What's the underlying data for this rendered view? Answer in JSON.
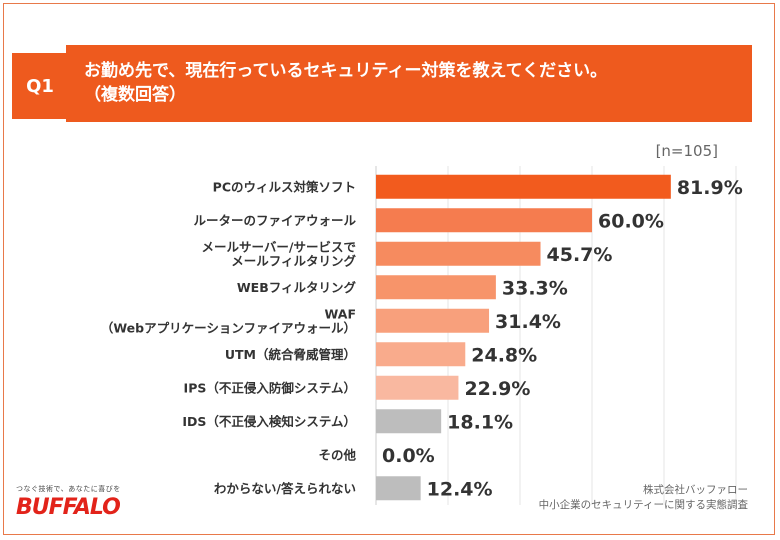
{
  "header": {
    "q_label": "Q1",
    "question_lines": [
      "お勤め先で、現在行っているセキュリティー対策を教えてください。",
      "（複数回答）"
    ]
  },
  "sample_size": "[n=105]",
  "chart_data": {
    "type": "bar",
    "orientation": "horizontal",
    "title": "お勤め先で、現在行っているセキュリティー対策を教えてください。（複数回答）",
    "categories": [
      [
        "PCのウィルス対策ソフト"
      ],
      [
        "ルーターのファイアウォール"
      ],
      [
        "メールサーバー/サービスで",
        "メールフィルタリング"
      ],
      [
        "WEBフィルタリング"
      ],
      [
        "WAF",
        "（Webアプリケーションファイアウォール）"
      ],
      [
        "UTM（統合脅威管理）"
      ],
      [
        "IPS（不正侵入防御システム）"
      ],
      [
        "IDS（不正侵入検知システム）"
      ],
      [
        "その他"
      ],
      [
        "わからない/答えられない"
      ]
    ],
    "values": [
      81.9,
      60.0,
      45.7,
      33.3,
      31.4,
      24.8,
      22.9,
      18.1,
      0.0,
      12.4
    ],
    "value_labels": [
      "81.9%",
      "60.0%",
      "45.7%",
      "33.3%",
      "31.4%",
      "24.8%",
      "22.9%",
      "18.1%",
      "0.0%",
      "12.4%"
    ],
    "colors": [
      "#f25b1e",
      "#f57c4f",
      "#f68b5f",
      "#f7946a",
      "#f8a07c",
      "#f9ab8c",
      "#f9b8a0",
      "#bdbdbd",
      "#bdbdbd",
      "#bdbdbd"
    ],
    "xlim": [
      0,
      100
    ],
    "unit": "%",
    "grid": true
  },
  "footer": {
    "tagline": "つなぐ技術で、あなたに喜びを",
    "logo_text": "BUFFALO",
    "source_lines": [
      "株式会社バッファロー",
      "中小企業のセキュリティーに関する実態調査"
    ]
  },
  "colors": {
    "accent": "#ee5a1e",
    "brand_red": "#e2231a",
    "frame": "#e8794a"
  }
}
